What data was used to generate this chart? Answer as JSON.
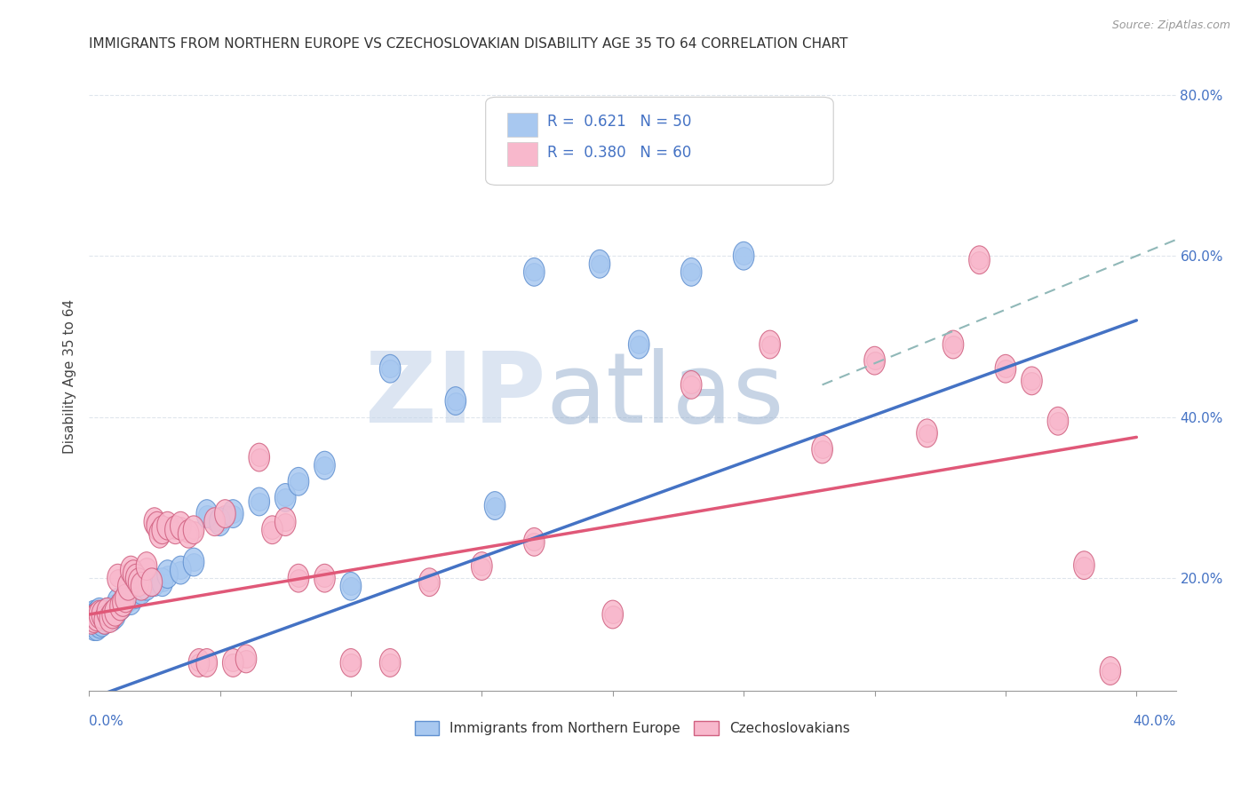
{
  "title": "IMMIGRANTS FROM NORTHERN EUROPE VS CZECHOSLOVAKIAN DISABILITY AGE 35 TO 64 CORRELATION CHART",
  "source": "Source: ZipAtlas.com",
  "ylabel": "Disability Age 35 to 64",
  "series1": {
    "label": "Immigrants from Northern Europe",
    "R": 0.621,
    "N": 50,
    "color": "#a8c8f0",
    "edge_color": "#6090d0",
    "line_color": "#4472c4",
    "x": [
      0.001,
      0.001,
      0.002,
      0.002,
      0.002,
      0.003,
      0.003,
      0.003,
      0.004,
      0.004,
      0.004,
      0.005,
      0.005,
      0.006,
      0.006,
      0.007,
      0.007,
      0.008,
      0.009,
      0.01,
      0.01,
      0.011,
      0.012,
      0.013,
      0.015,
      0.016,
      0.018,
      0.02,
      0.022,
      0.025,
      0.028,
      0.03,
      0.035,
      0.04,
      0.045,
      0.05,
      0.055,
      0.065,
      0.075,
      0.08,
      0.09,
      0.1,
      0.115,
      0.14,
      0.155,
      0.17,
      0.195,
      0.21,
      0.23,
      0.25
    ],
    "y": [
      0.145,
      0.15,
      0.14,
      0.145,
      0.155,
      0.14,
      0.148,
      0.155,
      0.143,
      0.15,
      0.158,
      0.145,
      0.152,
      0.148,
      0.155,
      0.15,
      0.158,
      0.155,
      0.152,
      0.155,
      0.162,
      0.17,
      0.165,
      0.168,
      0.175,
      0.172,
      0.18,
      0.185,
      0.19,
      0.195,
      0.195,
      0.205,
      0.21,
      0.22,
      0.28,
      0.27,
      0.28,
      0.295,
      0.3,
      0.32,
      0.34,
      0.19,
      0.46,
      0.42,
      0.29,
      0.58,
      0.59,
      0.49,
      0.58,
      0.6
    ],
    "line_x0": 0.0,
    "line_y0": 0.05,
    "line_x1": 0.4,
    "line_y1": 0.52
  },
  "series2": {
    "label": "Czechoslovakians",
    "R": 0.38,
    "N": 60,
    "color": "#f8b8cc",
    "edge_color": "#d06080",
    "line_color": "#e05878",
    "x": [
      0.001,
      0.002,
      0.003,
      0.004,
      0.005,
      0.006,
      0.007,
      0.008,
      0.009,
      0.01,
      0.011,
      0.012,
      0.013,
      0.014,
      0.015,
      0.016,
      0.017,
      0.018,
      0.019,
      0.02,
      0.022,
      0.024,
      0.025,
      0.026,
      0.027,
      0.028,
      0.03,
      0.033,
      0.035,
      0.038,
      0.04,
      0.042,
      0.045,
      0.048,
      0.052,
      0.055,
      0.06,
      0.065,
      0.07,
      0.075,
      0.08,
      0.09,
      0.1,
      0.115,
      0.13,
      0.15,
      0.17,
      0.2,
      0.23,
      0.26,
      0.28,
      0.3,
      0.32,
      0.33,
      0.34,
      0.35,
      0.36,
      0.37,
      0.38,
      0.39
    ],
    "y": [
      0.148,
      0.15,
      0.152,
      0.155,
      0.155,
      0.148,
      0.158,
      0.15,
      0.155,
      0.158,
      0.2,
      0.165,
      0.17,
      0.175,
      0.19,
      0.21,
      0.205,
      0.2,
      0.195,
      0.19,
      0.215,
      0.195,
      0.27,
      0.265,
      0.255,
      0.26,
      0.265,
      0.26,
      0.265,
      0.255,
      0.26,
      0.095,
      0.095,
      0.27,
      0.28,
      0.095,
      0.1,
      0.35,
      0.26,
      0.27,
      0.2,
      0.2,
      0.095,
      0.095,
      0.195,
      0.215,
      0.245,
      0.155,
      0.44,
      0.49,
      0.36,
      0.47,
      0.38,
      0.49,
      0.595,
      0.46,
      0.445,
      0.395,
      0.216,
      0.085
    ],
    "line_x0": 0.0,
    "line_y0": 0.155,
    "line_x1": 0.4,
    "line_y1": 0.375
  },
  "dash_line": {
    "x0": 0.28,
    "y0": 0.44,
    "x1": 0.415,
    "y1": 0.62,
    "color": "#90b8b8"
  },
  "watermark_zip": "ZIP",
  "watermark_atlas": "atlas",
  "background_color": "#ffffff",
  "grid_color": "#d8dfe8",
  "title_fontsize": 11,
  "tick_color": "#4472c4",
  "xlim": [
    0.0,
    0.415
  ],
  "ylim": [
    0.06,
    0.84
  ],
  "yticks": [
    0.2,
    0.4,
    0.6,
    0.8
  ],
  "ytick_labels": [
    "20.0%",
    "40.0%",
    "60.0%",
    "80.0%"
  ]
}
